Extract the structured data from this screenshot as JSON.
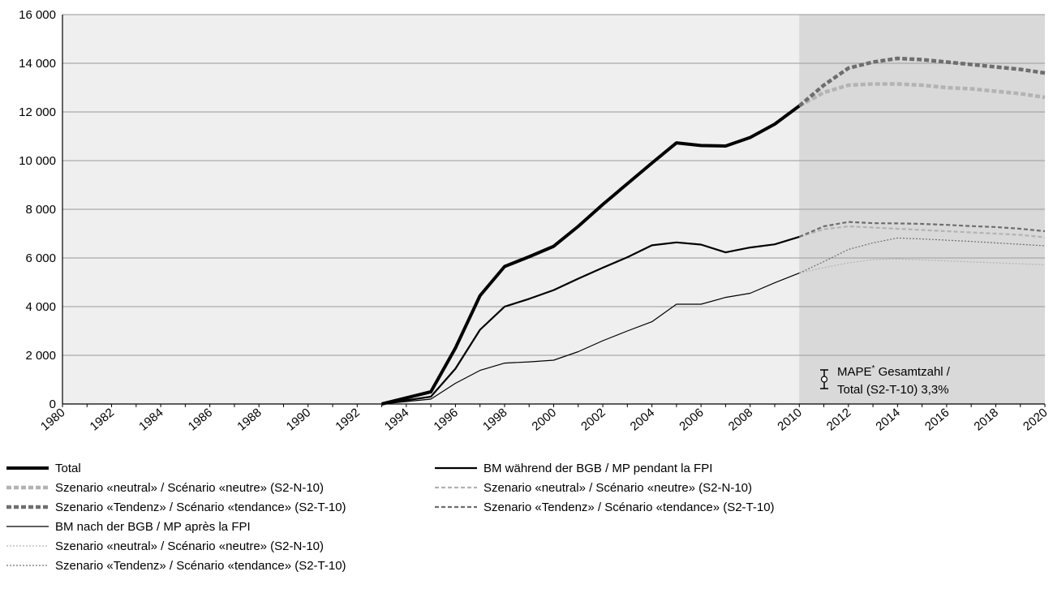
{
  "chart_data": {
    "type": "line",
    "y_ticks": [
      "0",
      "2 000",
      "4 000",
      "6 000",
      "8 000",
      "10 000",
      "12 000",
      "14 000",
      "16 000"
    ],
    "x_ticks": [
      "1980",
      "1982",
      "1984",
      "1986",
      "1988",
      "1990",
      "1992",
      "1994",
      "1996",
      "1998",
      "2000",
      "2002",
      "2004",
      "2006",
      "2008",
      "2010",
      "2012",
      "2014",
      "2016",
      "2018",
      "2020"
    ],
    "xlim": [
      1980,
      2020
    ],
    "ylim": [
      0,
      16000
    ],
    "grid": "horizontal",
    "forecast_region": [
      2010,
      2020
    ],
    "colors": {
      "black": "#000000",
      "light_gray": "#b3b3b3",
      "dark_gray": "#6e6e6e",
      "plot_bg": "#efefef",
      "forecast_bg": "#d9d9d9",
      "grid": "#9a9a9a"
    },
    "series": [
      {
        "name": "Total",
        "style": "thick-solid-black",
        "x": [
          1993,
          1994,
          1995,
          1996,
          1997,
          1998,
          1999,
          2000,
          2001,
          2002,
          2003,
          2004,
          2005,
          2006,
          2007,
          2008,
          2009,
          2010
        ],
        "y": [
          0,
          250,
          500,
          2300,
          4450,
          5650,
          6050,
          6480,
          7300,
          8200,
          9050,
          9900,
          10730,
          10620,
          10600,
          10950,
          11500,
          12250
        ]
      },
      {
        "name": "Szenario «neutral» / Scénario «neutre» (S2-N-10)",
        "style": "thick-dash-lightgray",
        "x": [
          2010,
          2011,
          2012,
          2013,
          2014,
          2015,
          2016,
          2017,
          2018,
          2019,
          2020
        ],
        "y": [
          12250,
          12800,
          13100,
          13150,
          13150,
          13100,
          13000,
          12950,
          12850,
          12750,
          12600
        ]
      },
      {
        "name": "Szenario «Tendenz» / Scénario «tendance» (S2-T-10)",
        "style": "thick-dash-darkgray",
        "x": [
          2010,
          2011,
          2012,
          2013,
          2014,
          2015,
          2016,
          2017,
          2018,
          2019,
          2020
        ],
        "y": [
          12250,
          13100,
          13800,
          14050,
          14200,
          14150,
          14050,
          13950,
          13850,
          13750,
          13600
        ]
      },
      {
        "name": "BM während der BGB / MP pendant la FPI",
        "style": "medium-solid-black",
        "x": [
          1993,
          1994,
          1995,
          1996,
          1997,
          1998,
          1999,
          2000,
          2001,
          2002,
          2003,
          2004,
          2005,
          2006,
          2007,
          2008,
          2009,
          2010
        ],
        "y": [
          0,
          150,
          300,
          1450,
          3050,
          4000,
          4320,
          4680,
          5150,
          5600,
          6030,
          6520,
          6640,
          6550,
          6230,
          6430,
          6560,
          6870
        ]
      },
      {
        "name": "Szenario «neutral» / Scénario «neutre» (S2-N-10)",
        "style": "medium-dash-lightgray",
        "x": [
          2010,
          2011,
          2012,
          2013,
          2014,
          2015,
          2016,
          2017,
          2018,
          2019,
          2020
        ],
        "y": [
          6870,
          7180,
          7300,
          7250,
          7200,
          7150,
          7100,
          7050,
          7000,
          6950,
          6850
        ]
      },
      {
        "name": "Szenario «Tendenz» / Scénario «tendance» (S2-T-10)",
        "style": "medium-dash-darkgray",
        "x": [
          2010,
          2011,
          2012,
          2013,
          2014,
          2015,
          2016,
          2017,
          2018,
          2019,
          2020
        ],
        "y": [
          6870,
          7300,
          7480,
          7430,
          7420,
          7400,
          7360,
          7310,
          7270,
          7200,
          7100
        ]
      },
      {
        "name": "BM nach der BGB / MP après la FPI",
        "style": "thin-solid-black",
        "x": [
          1993,
          1994,
          1995,
          1996,
          1997,
          1998,
          1999,
          2000,
          2001,
          2002,
          2003,
          2004,
          2005,
          2006,
          2007,
          2008,
          2009,
          2010
        ],
        "y": [
          0,
          100,
          200,
          850,
          1380,
          1680,
          1730,
          1800,
          2150,
          2600,
          3000,
          3380,
          4100,
          4100,
          4380,
          4550,
          4980,
          5380
        ]
      },
      {
        "name": "Szenario «neutral» / Scénario «neutre» (S2-N-10)",
        "style": "thin-dot-lightgray",
        "x": [
          2010,
          2011,
          2012,
          2013,
          2014,
          2015,
          2016,
          2017,
          2018,
          2019,
          2020
        ],
        "y": [
          5380,
          5600,
          5800,
          5930,
          5960,
          5920,
          5880,
          5840,
          5800,
          5760,
          5720
        ]
      },
      {
        "name": "Szenario «Tendenz» / Scénario «tendance» (S2-T-10)",
        "style": "thin-dot-darkgray",
        "x": [
          2010,
          2011,
          2012,
          2013,
          2014,
          2015,
          2016,
          2017,
          2018,
          2019,
          2020
        ],
        "y": [
          5380,
          5850,
          6350,
          6620,
          6820,
          6780,
          6730,
          6680,
          6620,
          6560,
          6500
        ]
      }
    ],
    "annotation": {
      "line1": "MAPE",
      "sup": "*",
      "line1_rest": " Gesamtzahl /",
      "line2": "Total (S2-T-10) 3,3%"
    }
  },
  "legend": {
    "left": [
      {
        "label": "Total",
        "style": "thick-solid-black"
      },
      {
        "label": "Szenario «neutral» / Scénario «neutre» (S2-N-10)",
        "style": "thick-dash-lightgray"
      },
      {
        "label": "Szenario «Tendenz» / Scénario «tendance» (S2-T-10)",
        "style": "thick-dash-darkgray"
      },
      {
        "label": "BM nach der BGB / MP après la FPI",
        "style": "thin-solid-black"
      },
      {
        "label": "Szenario «neutral» / Scénario «neutre» (S2-N-10)",
        "style": "thin-dot-lightgray"
      },
      {
        "label": "Szenario «Tendenz» / Scénario «tendance» (S2-T-10)",
        "style": "thin-dot-darkgray"
      }
    ],
    "right": [
      {
        "label": "BM während der BGB / MP pendant la FPI",
        "style": "medium-solid-black"
      },
      {
        "label": "Szenario «neutral» / Scénario «neutre» (S2-N-10)",
        "style": "medium-dash-lightgray"
      },
      {
        "label": "Szenario «Tendenz» / Scénario «tendance» (S2-T-10)",
        "style": "medium-dash-darkgray"
      }
    ]
  }
}
